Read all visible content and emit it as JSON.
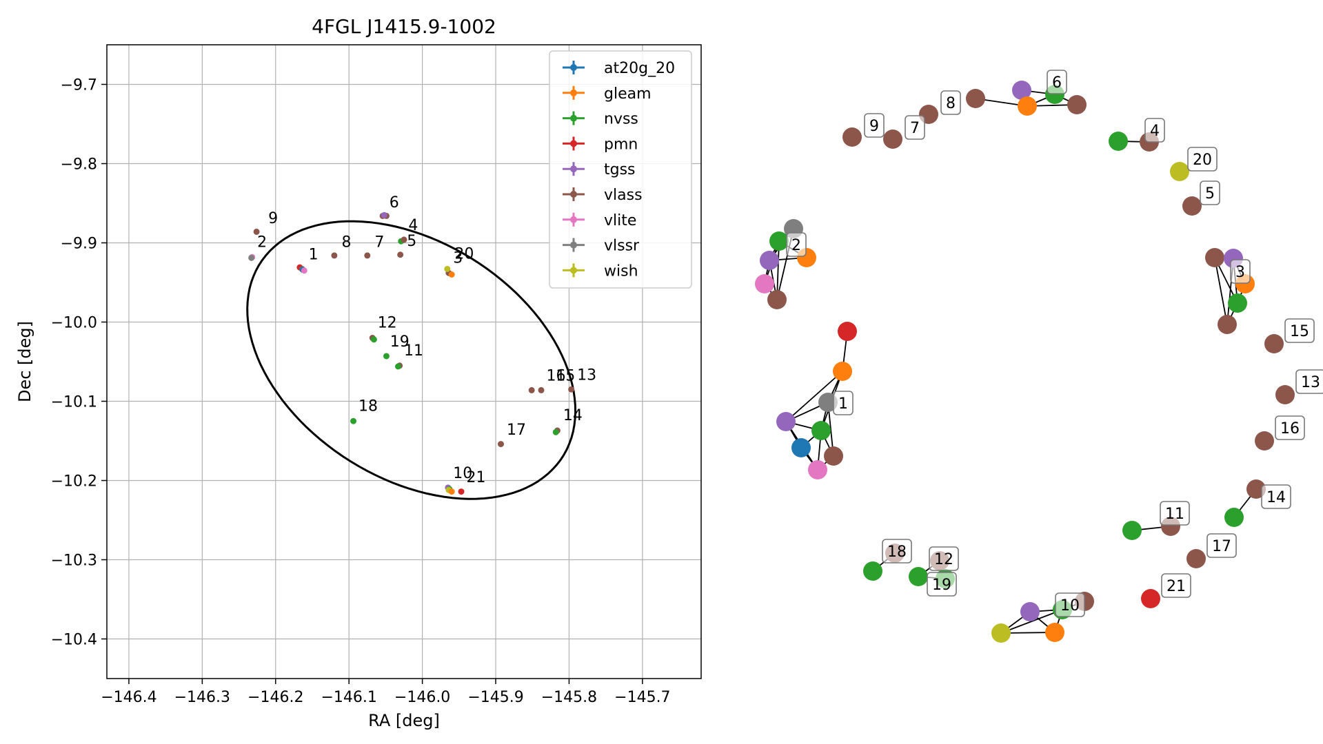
{
  "colors": {
    "at20g_20": "#1f77b4",
    "gleam": "#ff7f0e",
    "nvss": "#2ca02c",
    "pmn": "#d62728",
    "tgss": "#9467bd",
    "vlass": "#8c564b",
    "vlite": "#e377c2",
    "vlssr": "#7f7f7f",
    "wish": "#bcbd22"
  },
  "chart_data": [
    {
      "type": "scatter",
      "title": "4FGL J1415.9-1002",
      "xlabel": "RA [deg]",
      "ylabel": "Dec [deg]",
      "xlim": [
        -146.43,
        -145.62
      ],
      "ylim": [
        -10.45,
        -9.65
      ],
      "xticks": [
        -146.4,
        -146.3,
        -146.2,
        -146.1,
        -146.0,
        -145.9,
        -145.8,
        -145.7
      ],
      "xtick_labels": [
        "−146.4",
        "−146.3",
        "−146.2",
        "−146.1",
        "−146.0",
        "−145.9",
        "−145.8",
        "−145.7"
      ],
      "yticks": [
        -9.7,
        -9.8,
        -9.9,
        -10.0,
        -10.1,
        -10.2,
        -10.3,
        -10.4
      ],
      "ytick_labels": [
        "−9.7",
        "−9.8",
        "−9.9",
        "−10.0",
        "−10.1",
        "−10.2",
        "−10.3",
        "−10.4"
      ],
      "grid": true,
      "legend_position": "top-right",
      "legend": [
        "at20g_20",
        "gleam",
        "nvss",
        "pmn",
        "tgss",
        "vlass",
        "vlite",
        "vlssr",
        "wish"
      ],
      "ellipse": {
        "center": [
          -146.015,
          -10.048
        ],
        "semi_major": 0.24,
        "semi_minor": 0.152,
        "angle_deg": -28
      },
      "points": [
        {
          "survey": "vlass",
          "x": -146.226,
          "y": -9.886
        },
        {
          "survey": "vlite",
          "x": -146.232,
          "y": -9.918
        },
        {
          "survey": "vlssr",
          "x": -146.233,
          "y": -9.919
        },
        {
          "survey": "vlass",
          "x": -146.12,
          "y": -9.916
        },
        {
          "survey": "vlass",
          "x": -146.075,
          "y": -9.916
        },
        {
          "survey": "vlass",
          "x": -146.054,
          "y": -9.866
        },
        {
          "survey": "vlass",
          "x": -146.049,
          "y": -9.866
        },
        {
          "survey": "tgss",
          "x": -146.052,
          "y": -9.865
        },
        {
          "survey": "vlass",
          "x": -146.03,
          "y": -9.915
        },
        {
          "survey": "nvss",
          "x": -146.029,
          "y": -9.898
        },
        {
          "survey": "vlass",
          "x": -146.025,
          "y": -9.896
        },
        {
          "survey": "pmn",
          "x": -146.167,
          "y": -9.931
        },
        {
          "survey": "vlass",
          "x": -146.164,
          "y": -9.933
        },
        {
          "survey": "at20g_20",
          "x": -146.163,
          "y": -9.934
        },
        {
          "survey": "vlite",
          "x": -146.161,
          "y": -9.935
        },
        {
          "survey": "vlass",
          "x": -145.964,
          "y": -9.938
        },
        {
          "survey": "wish",
          "x": -145.966,
          "y": -9.933
        },
        {
          "survey": "gleam",
          "x": -145.96,
          "y": -9.94
        },
        {
          "survey": "vlass",
          "x": -146.068,
          "y": -10.02
        },
        {
          "survey": "nvss",
          "x": -146.066,
          "y": -10.022
        },
        {
          "survey": "nvss",
          "x": -146.049,
          "y": -10.043
        },
        {
          "survey": "vlass",
          "x": -146.031,
          "y": -10.055
        },
        {
          "survey": "nvss",
          "x": -146.033,
          "y": -10.056
        },
        {
          "survey": "nvss",
          "x": -146.094,
          "y": -10.125
        },
        {
          "survey": "vlass",
          "x": -145.851,
          "y": -10.086
        },
        {
          "survey": "vlass",
          "x": -145.838,
          "y": -10.086
        },
        {
          "survey": "vlass",
          "x": -145.797,
          "y": -10.085
        },
        {
          "survey": "vlass",
          "x": -145.893,
          "y": -10.154
        },
        {
          "survey": "vlass",
          "x": -145.816,
          "y": -10.137
        },
        {
          "survey": "nvss",
          "x": -145.818,
          "y": -10.139
        },
        {
          "survey": "tgss",
          "x": -145.965,
          "y": -10.209
        },
        {
          "survey": "nvss",
          "x": -145.963,
          "y": -10.211
        },
        {
          "survey": "wish",
          "x": -145.964,
          "y": -10.212
        },
        {
          "survey": "gleam",
          "x": -145.96,
          "y": -10.214
        },
        {
          "survey": "pmn",
          "x": -145.947,
          "y": -10.214
        }
      ],
      "annotations": [
        {
          "text": "9",
          "x": -146.21,
          "y": -9.875
        },
        {
          "text": "2",
          "x": -146.225,
          "y": -9.905
        },
        {
          "text": "1",
          "x": -146.155,
          "y": -9.921
        },
        {
          "text": "8",
          "x": -146.11,
          "y": -9.905
        },
        {
          "text": "7",
          "x": -146.065,
          "y": -9.905
        },
        {
          "text": "6",
          "x": -146.045,
          "y": -9.855
        },
        {
          "text": "4",
          "x": -146.019,
          "y": -9.884
        },
        {
          "text": "5",
          "x": -146.021,
          "y": -9.904
        },
        {
          "text": "3",
          "x": -145.958,
          "y": -9.925
        },
        {
          "text": "20",
          "x": -145.956,
          "y": -9.92
        },
        {
          "text": "12",
          "x": -146.061,
          "y": -10.007
        },
        {
          "text": "19",
          "x": -146.044,
          "y": -10.031
        },
        {
          "text": "11",
          "x": -146.025,
          "y": -10.042
        },
        {
          "text": "18",
          "x": -146.087,
          "y": -10.112
        },
        {
          "text": "16",
          "x": -145.831,
          "y": -10.074
        },
        {
          "text": "15",
          "x": -145.818,
          "y": -10.074
        },
        {
          "text": "13",
          "x": -145.789,
          "y": -10.073
        },
        {
          "text": "17",
          "x": -145.885,
          "y": -10.142
        },
        {
          "text": "14",
          "x": -145.808,
          "y": -10.124
        },
        {
          "text": "10",
          "x": -145.958,
          "y": -10.197
        },
        {
          "text": "21",
          "x": -145.94,
          "y": -10.202
        }
      ]
    },
    {
      "type": "network",
      "nodes": [
        {
          "id": "9",
          "survey": "vlass",
          "label": "9"
        },
        {
          "id": "7",
          "survey": "vlass",
          "label": "7"
        },
        {
          "id": "8",
          "survey": "vlass",
          "label": "8"
        },
        {
          "id": "6a",
          "survey": "vlass"
        },
        {
          "id": "6b",
          "survey": "tgss"
        },
        {
          "id": "6c",
          "survey": "gleam"
        },
        {
          "id": "6d",
          "survey": "nvss"
        },
        {
          "id": "6e",
          "survey": "vlass",
          "label": "6"
        },
        {
          "id": "4a",
          "survey": "nvss"
        },
        {
          "id": "4b",
          "survey": "vlass",
          "label": "4"
        },
        {
          "id": "20",
          "survey": "wish",
          "label": "20"
        },
        {
          "id": "5",
          "survey": "vlass",
          "label": "5"
        },
        {
          "id": "2a",
          "survey": "vlssr"
        },
        {
          "id": "2b",
          "survey": "nvss"
        },
        {
          "id": "2c",
          "survey": "gleam",
          "label": "2"
        },
        {
          "id": "2d",
          "survey": "tgss"
        },
        {
          "id": "2e",
          "survey": "vlite"
        },
        {
          "id": "2f",
          "survey": "vlass"
        },
        {
          "id": "3a",
          "survey": "vlass"
        },
        {
          "id": "3b",
          "survey": "tgss"
        },
        {
          "id": "3c",
          "survey": "gleam",
          "label": "3"
        },
        {
          "id": "3d",
          "survey": "nvss"
        },
        {
          "id": "3e",
          "survey": "vlass"
        },
        {
          "id": "15",
          "survey": "vlass",
          "label": "15"
        },
        {
          "id": "13",
          "survey": "vlass",
          "label": "13"
        },
        {
          "id": "16",
          "survey": "vlass",
          "label": "16"
        },
        {
          "id": "1a",
          "survey": "pmn"
        },
        {
          "id": "1b",
          "survey": "gleam"
        },
        {
          "id": "1c",
          "survey": "vlssr",
          "label": "1"
        },
        {
          "id": "1d",
          "survey": "tgss"
        },
        {
          "id": "1e",
          "survey": "nvss"
        },
        {
          "id": "1f",
          "survey": "at20g_20"
        },
        {
          "id": "1g",
          "survey": "vlass"
        },
        {
          "id": "1h",
          "survey": "vlite"
        },
        {
          "id": "14a",
          "survey": "vlass",
          "label": "14"
        },
        {
          "id": "14b",
          "survey": "nvss"
        },
        {
          "id": "11a",
          "survey": "nvss"
        },
        {
          "id": "11b",
          "survey": "vlass",
          "label": "11"
        },
        {
          "id": "17",
          "survey": "vlass",
          "label": "17"
        },
        {
          "id": "21",
          "survey": "pmn",
          "label": "21"
        },
        {
          "id": "18a",
          "survey": "vlass",
          "label": "18"
        },
        {
          "id": "18b",
          "survey": "nvss"
        },
        {
          "id": "12a",
          "survey": "vlass",
          "label": "12"
        },
        {
          "id": "19a",
          "survey": "nvss",
          "label": "19"
        },
        {
          "id": "12b",
          "survey": "nvss"
        },
        {
          "id": "10a",
          "survey": "vlass"
        },
        {
          "id": "10b",
          "survey": "nvss",
          "label": "10"
        },
        {
          "id": "10c",
          "survey": "tgss"
        },
        {
          "id": "10d",
          "survey": "gleam"
        },
        {
          "id": "10e",
          "survey": "wish"
        }
      ],
      "edges": [
        [
          "6a",
          "6c"
        ],
        [
          "6b",
          "6c"
        ],
        [
          "6b",
          "6d"
        ],
        [
          "6c",
          "6d"
        ],
        [
          "6c",
          "6e"
        ],
        [
          "6d",
          "6e"
        ],
        [
          "4a",
          "4b"
        ],
        [
          "2a",
          "2b"
        ],
        [
          "2a",
          "2d"
        ],
        [
          "2a",
          "2f"
        ],
        [
          "2b",
          "2c"
        ],
        [
          "2b",
          "2d"
        ],
        [
          "2b",
          "2e"
        ],
        [
          "2b",
          "2f"
        ],
        [
          "2d",
          "2e"
        ],
        [
          "2d",
          "2f"
        ],
        [
          "2e",
          "2f"
        ],
        [
          "2c",
          "2d"
        ],
        [
          "3a",
          "3d"
        ],
        [
          "3a",
          "3e"
        ],
        [
          "3b",
          "3c"
        ],
        [
          "3b",
          "3d"
        ],
        [
          "3c",
          "3d"
        ],
        [
          "3d",
          "3e"
        ],
        [
          "3b",
          "3e"
        ],
        [
          "1a",
          "1b"
        ],
        [
          "1b",
          "1c"
        ],
        [
          "1b",
          "1d"
        ],
        [
          "1b",
          "1e"
        ],
        [
          "1c",
          "1d"
        ],
        [
          "1c",
          "1e"
        ],
        [
          "1c",
          "1g"
        ],
        [
          "1d",
          "1e"
        ],
        [
          "1d",
          "1f"
        ],
        [
          "1d",
          "1h"
        ],
        [
          "1e",
          "1f"
        ],
        [
          "1e",
          "1g"
        ],
        [
          "1e",
          "1h"
        ],
        [
          "1f",
          "1h"
        ],
        [
          "1g",
          "1h"
        ],
        [
          "14a",
          "14b"
        ],
        [
          "11a",
          "11b"
        ],
        [
          "18a",
          "18b"
        ],
        [
          "19a",
          "12b"
        ],
        [
          "12a",
          "19a"
        ],
        [
          "10a",
          "10b"
        ],
        [
          "10b",
          "10c"
        ],
        [
          "10b",
          "10d"
        ],
        [
          "10c",
          "10d"
        ],
        [
          "10c",
          "10e"
        ],
        [
          "10d",
          "10e"
        ],
        [
          "10b",
          "10e"
        ]
      ]
    }
  ]
}
